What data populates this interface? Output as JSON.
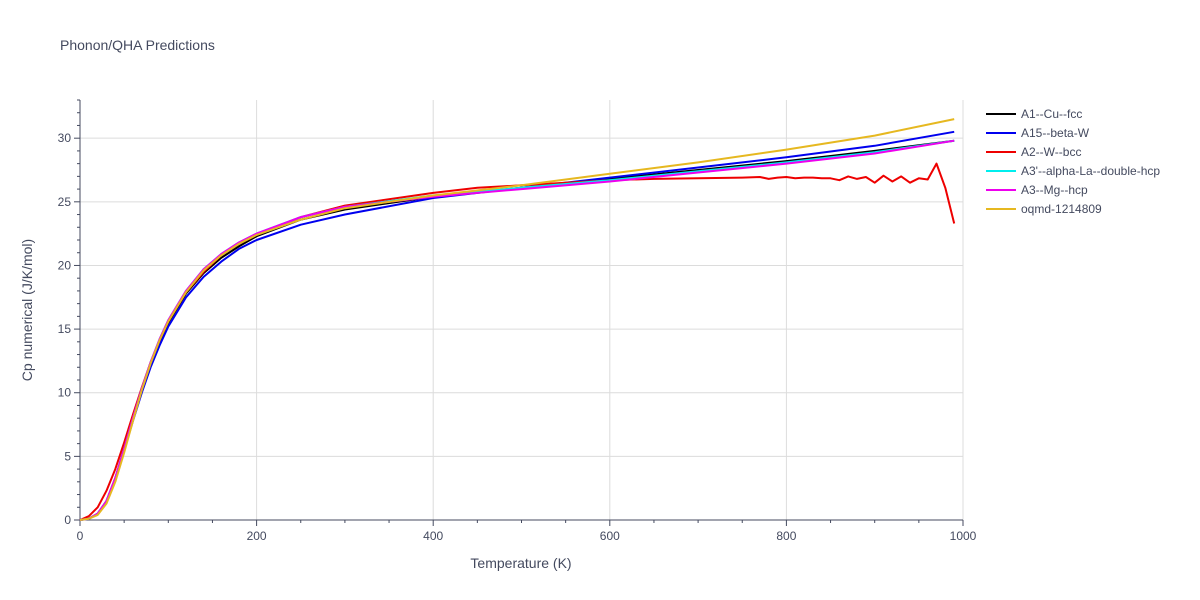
{
  "chart_data": {
    "type": "line",
    "title": "Phonon/QHA Predictions",
    "xlabel": "Temperature (K)",
    "ylabel": "Cp numerical (J/K/mol)",
    "xlim": [
      0,
      1000
    ],
    "ylim": [
      0,
      33
    ],
    "xticks": [
      0,
      200,
      400,
      600,
      800,
      1000
    ],
    "yticks": [
      0,
      5,
      10,
      15,
      20,
      25,
      30
    ],
    "grid": true,
    "legend_position": "top-right outside",
    "series": [
      {
        "name": "A1--Cu--fcc",
        "color": "#000000",
        "x": [
          0,
          10,
          20,
          30,
          40,
          50,
          60,
          70,
          80,
          90,
          100,
          120,
          140,
          160,
          180,
          200,
          250,
          300,
          400,
          500,
          600,
          700,
          800,
          900,
          990
        ],
        "y": [
          0,
          0.1,
          0.5,
          1.5,
          3.3,
          5.6,
          8.0,
          10.3,
          12.3,
          14.0,
          15.5,
          17.8,
          19.4,
          20.6,
          21.5,
          22.3,
          23.6,
          24.4,
          25.4,
          26.1,
          26.8,
          27.5,
          28.2,
          29.0,
          29.8
        ]
      },
      {
        "name": "A15--beta-W",
        "color": "#0000ee",
        "x": [
          0,
          10,
          20,
          30,
          40,
          50,
          60,
          70,
          80,
          90,
          100,
          120,
          140,
          160,
          180,
          200,
          250,
          300,
          400,
          500,
          600,
          700,
          800,
          900,
          990
        ],
        "y": [
          0,
          0.1,
          0.5,
          1.4,
          3.2,
          5.5,
          7.8,
          10.0,
          12.0,
          13.7,
          15.2,
          17.5,
          19.1,
          20.3,
          21.3,
          22.0,
          23.2,
          24.0,
          25.3,
          26.1,
          26.9,
          27.7,
          28.5,
          29.4,
          30.5
        ]
      },
      {
        "name": "A2--W--bcc",
        "color": "#ee0000",
        "x": [
          0,
          10,
          20,
          30,
          40,
          50,
          60,
          70,
          80,
          90,
          100,
          120,
          140,
          160,
          180,
          200,
          250,
          300,
          400,
          450,
          500,
          550,
          600,
          650,
          700,
          750,
          770,
          780,
          790,
          800,
          810,
          820,
          830,
          840,
          850,
          860,
          870,
          880,
          890,
          900,
          910,
          920,
          930,
          940,
          950,
          960,
          970,
          980,
          990
        ],
        "y": [
          0,
          0.3,
          1.0,
          2.3,
          4.0,
          6.1,
          8.3,
          10.4,
          12.4,
          14.1,
          15.6,
          17.9,
          19.5,
          20.8,
          21.7,
          22.4,
          23.8,
          24.7,
          25.7,
          26.1,
          26.3,
          26.5,
          26.7,
          26.8,
          26.85,
          26.9,
          26.95,
          26.8,
          26.9,
          26.95,
          26.85,
          26.9,
          26.9,
          26.85,
          26.85,
          26.7,
          27.0,
          26.8,
          26.95,
          26.5,
          27.05,
          26.6,
          27.0,
          26.5,
          26.85,
          26.75,
          28.0,
          26.1,
          23.3
        ]
      },
      {
        "name": "A3'--alpha-La--double-hcp",
        "color": "#00eeee",
        "x": [
          0,
          10,
          20,
          30,
          40,
          50,
          60,
          70,
          80,
          90,
          100,
          120,
          140,
          160,
          180,
          200,
          250,
          300,
          400,
          500,
          600,
          700,
          800,
          900,
          990
        ],
        "y": [
          0,
          0.1,
          0.5,
          1.5,
          3.3,
          5.6,
          8.0,
          10.3,
          12.4,
          14.2,
          15.7,
          18.0,
          19.7,
          20.9,
          21.8,
          22.5,
          23.8,
          24.6,
          25.5,
          26.1,
          26.7,
          27.4,
          28.1,
          28.9,
          29.8
        ]
      },
      {
        "name": "A3--Mg--hcp",
        "color": "#ee00ee",
        "x": [
          0,
          10,
          20,
          30,
          40,
          50,
          60,
          70,
          80,
          90,
          100,
          120,
          140,
          160,
          180,
          200,
          250,
          300,
          400,
          500,
          600,
          700,
          800,
          900,
          990
        ],
        "y": [
          0,
          0.1,
          0.5,
          1.5,
          3.3,
          5.6,
          8.0,
          10.3,
          12.4,
          14.2,
          15.7,
          18.0,
          19.7,
          20.9,
          21.8,
          22.5,
          23.8,
          24.6,
          25.4,
          26.0,
          26.6,
          27.3,
          28.0,
          28.8,
          29.8
        ]
      },
      {
        "name": "oqmd-1214809",
        "color": "#e6b820",
        "x": [
          0,
          10,
          20,
          30,
          40,
          50,
          60,
          70,
          80,
          90,
          100,
          120,
          140,
          160,
          180,
          200,
          250,
          300,
          400,
          500,
          600,
          700,
          800,
          900,
          990
        ],
        "y": [
          0,
          0.1,
          0.4,
          1.3,
          3.0,
          5.3,
          7.8,
          10.2,
          12.3,
          14.1,
          15.6,
          17.9,
          19.6,
          20.8,
          21.7,
          22.4,
          23.6,
          24.5,
          25.5,
          26.3,
          27.2,
          28.1,
          29.1,
          30.2,
          31.5
        ]
      }
    ]
  }
}
